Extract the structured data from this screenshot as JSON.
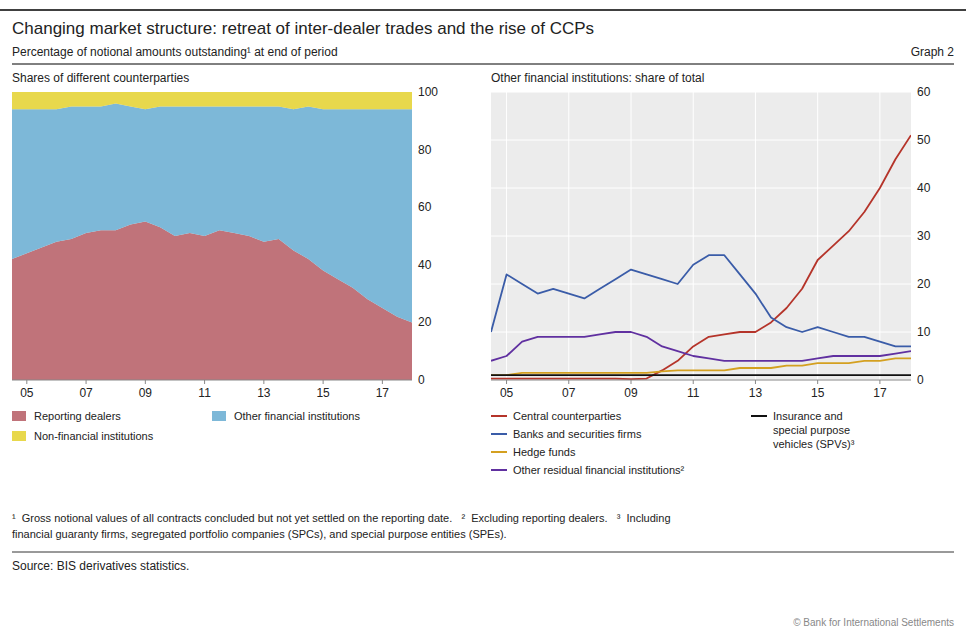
{
  "title": "Changing market structure: retreat of inter-dealer trades and the rise of CCPs",
  "subtitle": "Percentage of notional amounts outstanding¹ at end of period",
  "annotations": [
    "Graph 2",
    "¹  Gross notional values of all contracts concluded but not yet settled on the reporting date.   ²  Excluding reporting dealers.   ³  Including",
    "financial guaranty firms, segregated portfolio companies (SPCs), and special purpose entities (SPEs).",
    "Source: BIS derivatives statistics.",
    "© Bank for International Settlements"
  ],
  "chart_data": [
    {
      "type": "area",
      "stacked": true,
      "title": "Shares of different counterparties",
      "x": [
        2004.5,
        2005.0,
        2005.5,
        2006.0,
        2006.5,
        2007.0,
        2007.5,
        2008.0,
        2008.5,
        2009.0,
        2009.5,
        2010.0,
        2010.5,
        2011.0,
        2011.5,
        2012.0,
        2012.5,
        2013.0,
        2013.5,
        2014.0,
        2014.5,
        2015.0,
        2015.5,
        2016.0,
        2016.5,
        2017.0,
        2017.5,
        2018.0
      ],
      "xlim": [
        2004.5,
        2018.0
      ],
      "xticks": [
        {
          "value": 2005,
          "label": "05"
        },
        {
          "value": 2007,
          "label": "07"
        },
        {
          "value": 2009,
          "label": "09"
        },
        {
          "value": 2011,
          "label": "11"
        },
        {
          "value": 2013,
          "label": "13"
        },
        {
          "value": 2015,
          "label": "15"
        },
        {
          "value": 2017,
          "label": "17"
        }
      ],
      "ylim": [
        0,
        100
      ],
      "yticks": [
        0,
        20,
        40,
        60,
        80,
        100
      ],
      "series": [
        {
          "name": "Reporting dealers",
          "color": "#c0737a",
          "values": [
            42,
            44,
            46,
            48,
            49,
            51,
            52,
            52,
            54,
            55,
            53,
            50,
            51,
            50,
            52,
            51,
            50,
            48,
            49,
            45,
            42,
            38,
            35,
            32,
            28,
            25,
            22,
            20
          ]
        },
        {
          "name": "Other financial institutions",
          "color": "#7db8d8",
          "values": [
            52,
            50,
            48,
            46,
            46,
            44,
            43,
            44,
            41,
            39,
            42,
            45,
            44,
            45,
            43,
            44,
            45,
            47,
            46,
            49,
            53,
            56,
            59,
            62,
            66,
            69,
            72,
            74
          ]
        },
        {
          "name": "Non-financial institutions",
          "color": "#e8d84c",
          "values": [
            6,
            6,
            6,
            6,
            5,
            5,
            5,
            4,
            5,
            6,
            5,
            5,
            5,
            5,
            5,
            5,
            5,
            5,
            5,
            6,
            5,
            6,
            6,
            6,
            6,
            6,
            6,
            6
          ]
        }
      ]
    },
    {
      "type": "line",
      "title": "Other financial institutions: share of total",
      "x": [
        2004.5,
        2005.0,
        2005.5,
        2006.0,
        2006.5,
        2007.0,
        2007.5,
        2008.0,
        2008.5,
        2009.0,
        2009.5,
        2010.0,
        2010.5,
        2011.0,
        2011.5,
        2012.0,
        2012.5,
        2013.0,
        2013.5,
        2014.0,
        2014.5,
        2015.0,
        2015.5,
        2016.0,
        2016.5,
        2017.0,
        2017.5,
        2018.0
      ],
      "xlim": [
        2004.5,
        2018.0
      ],
      "xticks": [
        {
          "value": 2005,
          "label": "05"
        },
        {
          "value": 2007,
          "label": "07"
        },
        {
          "value": 2009,
          "label": "09"
        },
        {
          "value": 2011,
          "label": "11"
        },
        {
          "value": 2013,
          "label": "13"
        },
        {
          "value": 2015,
          "label": "15"
        },
        {
          "value": 2017,
          "label": "17"
        }
      ],
      "ylim": [
        0,
        60
      ],
      "yticks": [
        0,
        10,
        20,
        30,
        40,
        50,
        60
      ],
      "grid": true,
      "series": [
        {
          "name": "Central counterparties",
          "color": "#b5342a",
          "values": [
            0.3,
            0.3,
            0.3,
            0.3,
            0.3,
            0.3,
            0.3,
            0.3,
            0.3,
            0.2,
            0.3,
            2,
            4,
            7,
            9,
            9.5,
            10,
            10,
            12,
            15,
            19,
            25,
            28,
            31,
            35,
            40,
            46,
            51
          ]
        },
        {
          "name": "Banks and securities firms",
          "color": "#3a5ca8",
          "values": [
            10,
            22,
            20,
            18,
            19,
            18,
            17,
            19,
            21,
            23,
            22,
            21,
            20,
            24,
            26,
            26,
            22,
            18,
            13,
            11,
            10,
            11,
            10,
            9,
            9,
            8,
            7,
            7
          ]
        },
        {
          "name": "Hedge funds",
          "color": "#d4a020",
          "values": [
            1.0,
            1.0,
            1.5,
            1.5,
            1.5,
            1.5,
            1.5,
            1.5,
            1.5,
            1.5,
            1.5,
            1.8,
            2.0,
            2.0,
            2.0,
            2.0,
            2.5,
            2.5,
            2.5,
            3.0,
            3.0,
            3.5,
            3.5,
            3.5,
            4.0,
            4.0,
            4.5,
            4.5
          ]
        },
        {
          "name": "Other residual financial institutions²",
          "color": "#6030a0",
          "values": [
            4,
            5,
            8,
            9,
            9,
            9,
            9,
            9.5,
            10,
            10,
            9,
            7,
            6,
            5,
            4.5,
            4,
            4,
            4,
            4,
            4,
            4,
            4.5,
            5,
            5,
            5,
            5,
            5.5,
            6
          ]
        },
        {
          "name": "Insurance and\nspecial purpose\nvehicles (SPVs)³",
          "color": "#111111",
          "values": [
            1.0,
            1.0,
            1.0,
            1.0,
            1.0,
            1.0,
            1.0,
            1.0,
            1.0,
            1.0,
            1.0,
            1.0,
            1.0,
            1.0,
            1.0,
            1.0,
            1.0,
            1.0,
            1.0,
            1.0,
            1.0,
            1.0,
            1.0,
            1.0,
            1.0,
            1.0,
            1.0,
            1.0
          ]
        }
      ]
    }
  ]
}
